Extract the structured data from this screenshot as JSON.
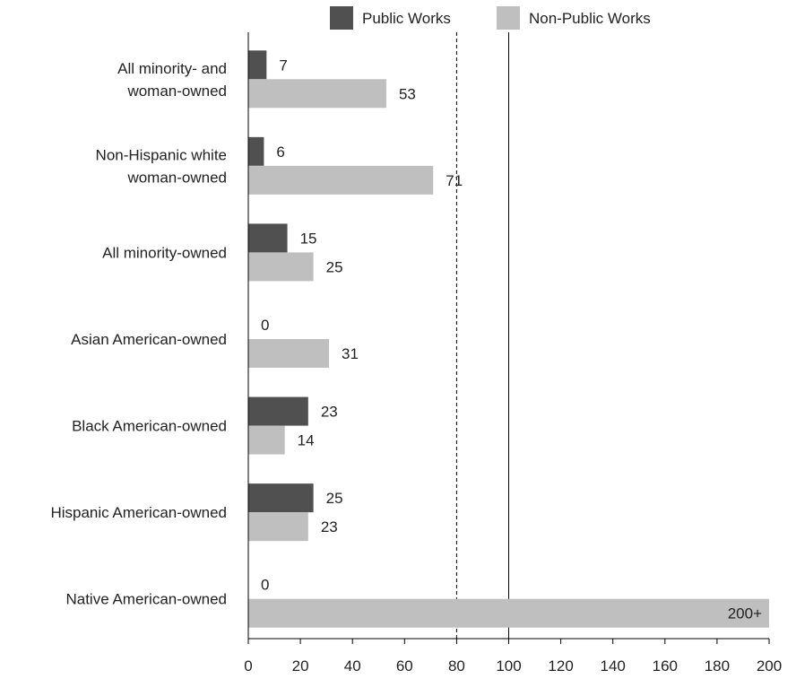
{
  "chart_data": {
    "type": "bar",
    "orientation": "horizontal",
    "title": "",
    "xlabel": "",
    "ylabel": "",
    "xlim": [
      0,
      200
    ],
    "x_ticks": [
      0,
      20,
      40,
      60,
      80,
      100,
      120,
      140,
      160,
      180,
      200
    ],
    "reference_lines": [
      {
        "x": 80,
        "style": "dashed"
      },
      {
        "x": 100,
        "style": "solid"
      }
    ],
    "legend_position": "top",
    "categories": [
      [
        "All minority- and",
        "woman-owned"
      ],
      [
        "Non-Hispanic white",
        "woman-owned"
      ],
      [
        "All minority-owned"
      ],
      [
        "Asian American-owned"
      ],
      [
        "Black American-owned"
      ],
      [
        "Hispanic American-owned"
      ],
      [
        "Native American-owned"
      ]
    ],
    "series": [
      {
        "name": "Public Works",
        "color": "#505050",
        "values": [
          7,
          6,
          15,
          0,
          23,
          25,
          0
        ],
        "labels": [
          "7",
          "6",
          "15",
          "0",
          "23",
          "25",
          "0"
        ]
      },
      {
        "name": "Non-Public Works",
        "color": "#bfbfbf",
        "values": [
          53,
          71,
          25,
          31,
          14,
          23,
          200
        ],
        "labels": [
          "53",
          "71",
          "25",
          "31",
          "14",
          "23",
          "200+"
        ]
      }
    ]
  }
}
